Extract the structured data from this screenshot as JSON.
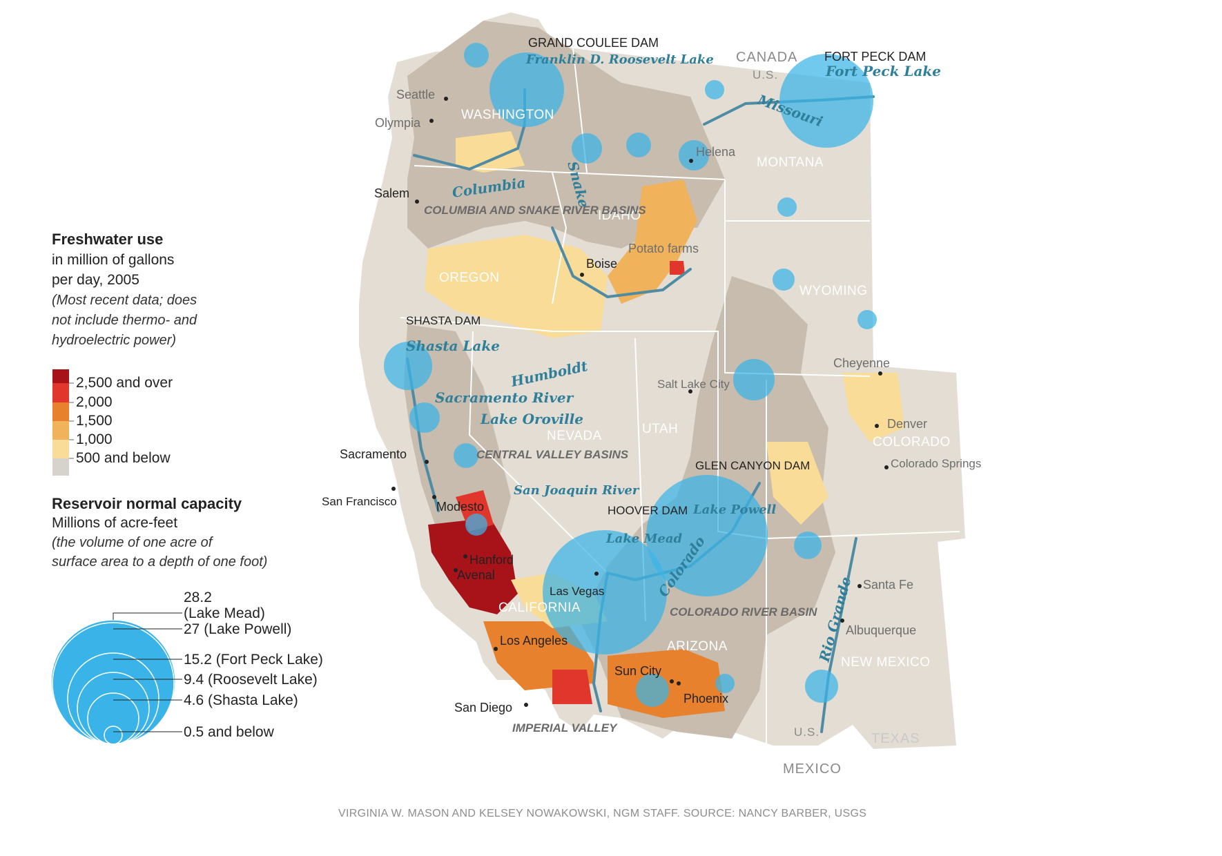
{
  "legend": {
    "freshwater": {
      "title": "Freshwater use",
      "subtitle_lines": [
        "in million of gallons",
        "per day, 2005"
      ],
      "note_lines": [
        "(Most recent data; does",
        "not include thermo- and",
        "hydroelectric power)"
      ],
      "classes": [
        {
          "label": "2,500 and over",
          "color": "#a8131a"
        },
        {
          "label": "2,000",
          "color": "#e0362b"
        },
        {
          "label": "1,500",
          "color": "#e8812e"
        },
        {
          "label": "1,000",
          "color": "#f0b25a"
        },
        {
          "label": "500 and below",
          "color": "#f8dc98"
        }
      ],
      "no_data_color": "#d6d2cc"
    },
    "reservoir": {
      "title": "Reservoir normal capacity",
      "subtitle": "Millions of acre-feet",
      "note_lines": [
        "(the volume of one acre of",
        "surface area to a depth of one foot)"
      ],
      "items": [
        {
          "label_lines": [
            "28.2",
            "(Lake Mead)"
          ],
          "value": 28.2
        },
        {
          "label_lines": [
            "27 (Lake Powell)"
          ],
          "value": 27
        },
        {
          "label_lines": [
            "15.2 (Fort Peck Lake)"
          ],
          "value": 15.2
        },
        {
          "label_lines": [
            "9.4 (Roosevelt Lake)"
          ],
          "value": 9.4
        },
        {
          "label_lines": [
            "4.6 (Shasta Lake)"
          ],
          "value": 4.6
        },
        {
          "label_lines": [
            "0.5 and below"
          ],
          "value": 0.5
        }
      ],
      "circle_color": "#3ab4e8"
    }
  },
  "map": {
    "countries": [
      "CANADA",
      "U.S.",
      "U.S.",
      "MEXICO",
      "TEXAS"
    ],
    "states": [
      "WASHINGTON",
      "OREGON",
      "IDAHO",
      "MONTANA",
      "WYOMING",
      "NEVADA",
      "UTAH",
      "COLORADO",
      "CALIFORNIA",
      "ARIZONA",
      "NEW MEXICO"
    ],
    "cities": [
      "Seattle",
      "Olympia",
      "Salem",
      "Boise",
      "Helena",
      "Salt Lake City",
      "Cheyenne",
      "Denver",
      "Colorado Springs",
      "Sacramento",
      "San Francisco",
      "Modesto",
      "Hanford",
      "Avenal",
      "Las Vegas",
      "Los Angeles",
      "San Diego",
      "Sun City",
      "Phoenix",
      "Santa Fe",
      "Albuquerque"
    ],
    "features": [
      "Potato farms"
    ],
    "dams": [
      "GRAND COULEE DAM",
      "FORT PECK DAM",
      "SHASTA DAM",
      "GLEN CANYON DAM",
      "HOOVER DAM"
    ],
    "waters": [
      "Franklin D. Roosevelt Lake",
      "Fort Peck Lake",
      "Shasta Lake",
      "Lake Powell",
      "Lake Mead",
      "Missouri",
      "Columbia",
      "Snake",
      "Humboldt",
      "Sacramento River",
      "Lake Oroville",
      "San Joaquin River",
      "Colorado",
      "Rio Grande"
    ],
    "regions": [
      "COLUMBIA AND SNAKE RIVER BASINS",
      "CENTRAL VALLEY BASINS",
      "COLORADO RIVER BASIN",
      "IMPERIAL VALLEY"
    ],
    "colors": {
      "land": "#e3ddd3",
      "basin": "#c7bcae",
      "river": "#4f8ba3",
      "reservoir": "#3ab4e8",
      "border": "#ffffff"
    }
  },
  "credit": "VIRGINIA W. MASON AND KELSEY NOWAKOWSKI, NGM STAFF. SOURCE: NANCY BARBER, USGS"
}
